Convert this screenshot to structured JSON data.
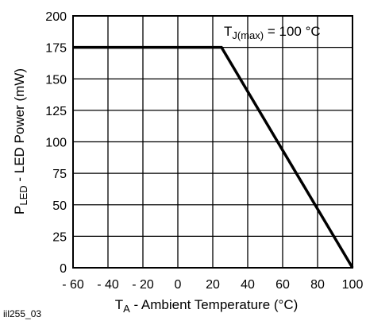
{
  "chart_data": {
    "type": "line",
    "x": [
      -60,
      25,
      100
    ],
    "series": [
      {
        "values": [
          175,
          175,
          0
        ]
      }
    ],
    "xlim": [
      -60,
      100
    ],
    "ylim": [
      0,
      200
    ],
    "x_ticks": [
      -60,
      -40,
      -20,
      0,
      20,
      40,
      60,
      80,
      100
    ],
    "y_ticks": [
      0,
      25,
      50,
      75,
      100,
      125,
      150,
      175,
      200
    ],
    "x_tick_labels": [
      "- 60",
      "- 40",
      "- 20",
      "0",
      "20",
      "40",
      "60",
      "80",
      "100"
    ],
    "y_tick_labels": [
      "0",
      "25",
      "50",
      "75",
      "100",
      "125",
      "150",
      "175",
      "200"
    ],
    "xlabel": {
      "main": "T",
      "sub": "A",
      "rest": " - Ambient Temperature (°C)"
    },
    "ylabel": {
      "main": "P",
      "sub": "LED",
      "rest": " - LED Power (mW)"
    },
    "annotation": {
      "main": "T",
      "sub": "J(max)",
      "rest": " = 100 °C"
    },
    "grid": true,
    "line_color": "#000000",
    "figure_id": "iil255_03"
  }
}
